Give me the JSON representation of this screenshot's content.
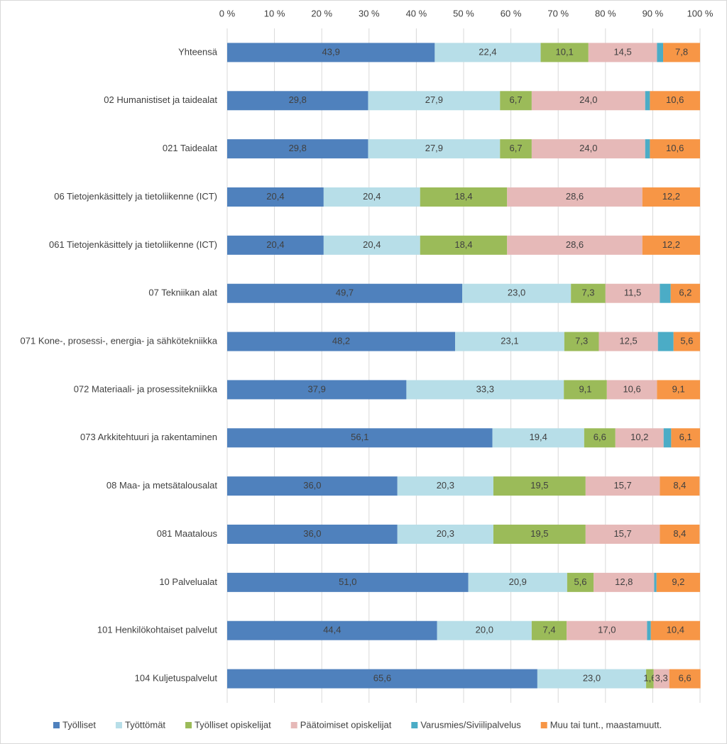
{
  "chart_data": {
    "type": "bar",
    "orientation": "horizontal",
    "stacked": true,
    "grid": true,
    "categories": [
      "Yhteensä",
      "02 Humanistiset ja taidealat",
      "021 Taidealat",
      "06 Tietojenkäsittely ja tietoliikenne (ICT)",
      "061 Tietojenkäsittely ja tietoliikenne (ICT)",
      "07 Tekniikan alat",
      "071 Kone-, prosessi-, energia- ja sähkötekniikka",
      "072 Materiaali- ja prosessitekniikka",
      "073 Arkkitehtuuri ja rakentaminen",
      "08 Maa- ja metsätalousalat",
      "081 Maatalous",
      "10 Palvelualat",
      "101 Henkilökohtaiset palvelut",
      "104 Kuljetuspalvelut"
    ],
    "xlim": [
      0,
      100
    ],
    "xticks": [
      {
        "value": 0,
        "label": "0 %"
      },
      {
        "value": 10,
        "label": "10 %"
      },
      {
        "value": 20,
        "label": "20 %"
      },
      {
        "value": 30,
        "label": "30 %"
      },
      {
        "value": 40,
        "label": "40 %"
      },
      {
        "value": 50,
        "label": "50 %"
      },
      {
        "value": 60,
        "label": "60 %"
      },
      {
        "value": 70,
        "label": "70 %"
      },
      {
        "value": 80,
        "label": "80 %"
      },
      {
        "value": 90,
        "label": "90 %"
      },
      {
        "value": 100,
        "label": "100 %"
      }
    ],
    "series": [
      {
        "name": "Työlliset",
        "color": "#4f81bd",
        "values": [
          43.9,
          29.8,
          29.8,
          20.4,
          20.4,
          49.7,
          48.2,
          37.9,
          56.1,
          36.0,
          36.0,
          51.0,
          44.4,
          65.6
        ],
        "value_labels": [
          "43,9",
          "29,8",
          "29,8",
          "20,4",
          "20,4",
          "49,7",
          "48,2",
          "37,9",
          "56,1",
          "36,0",
          "36,0",
          "51,0",
          "44,4",
          "65,6"
        ]
      },
      {
        "name": "Työttömät",
        "color": "#b7dee8",
        "values": [
          22.4,
          27.9,
          27.9,
          20.4,
          20.4,
          23.0,
          23.1,
          33.3,
          19.4,
          20.3,
          20.3,
          20.9,
          20.0,
          23.0
        ],
        "value_labels": [
          "22,4",
          "27,9",
          "27,9",
          "20,4",
          "20,4",
          "23,0",
          "23,1",
          "33,3",
          "19,4",
          "20,3",
          "20,3",
          "20,9",
          "20,0",
          "23,0"
        ]
      },
      {
        "name": "Työlliset opiskelijat",
        "color": "#9bbb59",
        "values": [
          10.1,
          6.7,
          6.7,
          18.4,
          18.4,
          7.3,
          7.3,
          9.1,
          6.6,
          19.5,
          19.5,
          5.6,
          7.4,
          1.6
        ],
        "value_labels": [
          "10,1",
          "6,7",
          "6,7",
          "18,4",
          "18,4",
          "7,3",
          "7,3",
          "9,1",
          "6,6",
          "19,5",
          "19,5",
          "5,6",
          "7,4",
          "1,6"
        ]
      },
      {
        "name": "Päätoimiset opiskelijat",
        "color": "#e6b9b8",
        "values": [
          14.5,
          24.0,
          24.0,
          28.6,
          28.6,
          11.5,
          12.5,
          10.6,
          10.2,
          15.7,
          15.7,
          12.8,
          17.0,
          3.3
        ],
        "value_labels": [
          "14,5",
          "24,0",
          "24,0",
          "28,6",
          "28,6",
          "11,5",
          "12,5",
          "10,6",
          "10,2",
          "15,7",
          "15,7",
          "12,8",
          "17,0",
          "3,3"
        ]
      },
      {
        "name": "Varusmies/Siviilipalvelus",
        "color": "#4bacc6",
        "values": [
          1.3,
          1.0,
          1.0,
          0,
          0,
          2.3,
          3.3,
          0,
          1.6,
          0,
          0,
          0.5,
          0.8,
          0
        ]
      },
      {
        "name": "Muu tai tunt., maastamuutt.",
        "color": "#f79646",
        "values": [
          7.8,
          10.6,
          10.6,
          12.2,
          12.2,
          6.2,
          5.6,
          9.1,
          6.1,
          8.4,
          8.4,
          9.2,
          10.4,
          6.6
        ],
        "value_labels": [
          "7,8",
          "10,6",
          "10,6",
          "12,2",
          "12,2",
          "6,2",
          "5,6",
          "9,1",
          "6,1",
          "8,4",
          "8,4",
          "9,2",
          "10,4",
          "6,6"
        ]
      }
    ]
  }
}
